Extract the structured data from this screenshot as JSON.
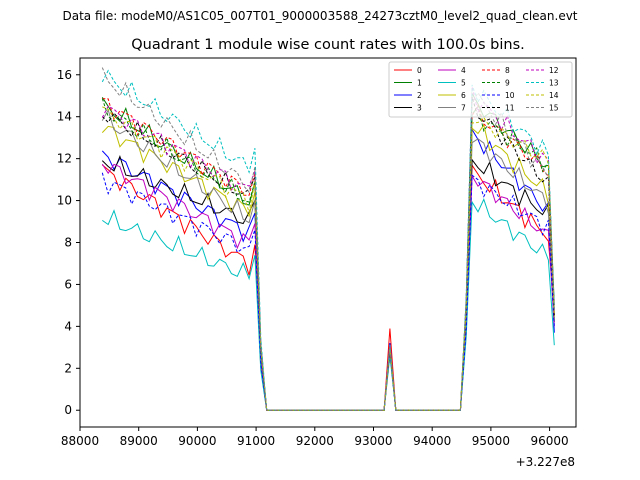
{
  "suptitle": "Data file: modeM0/AS1C05_007T01_9000003588_24273cztM0_level2_quad_clean.evt",
  "chart_data": {
    "type": "line",
    "title": "Quadrant 1 module wise count rates with 100.0s bins.",
    "xlabel": "",
    "ylabel": "",
    "x_offset_label": "+3.227e8",
    "xlim": [
      88000,
      96450
    ],
    "ylim": [
      -0.8,
      16.8
    ],
    "xticks": [
      88000,
      89000,
      90000,
      91000,
      92000,
      93000,
      94000,
      95000,
      96000
    ],
    "xtick_labels": [
      "88000",
      "89000",
      "90000",
      "91000",
      "92000",
      "93000",
      "94000",
      "95000",
      "96000"
    ],
    "yticks": [
      0,
      2,
      4,
      6,
      8,
      10,
      12,
      14,
      16
    ],
    "ytick_labels": [
      "0",
      "2",
      "4",
      "6",
      "8",
      "10",
      "12",
      "14",
      "16"
    ],
    "grid": false,
    "legend_position": "top-right",
    "x": [
      88380,
      88480,
      88580,
      88680,
      88780,
      88880,
      88980,
      89080,
      89180,
      89280,
      89380,
      89480,
      89580,
      89680,
      89780,
      89880,
      89980,
      90080,
      90180,
      90280,
      90380,
      90480,
      90580,
      90680,
      90780,
      90880,
      90980,
      91080,
      91180,
      91280,
      91380,
      91480,
      91580,
      91680,
      91780,
      91880,
      91980,
      92080,
      92180,
      92280,
      92380,
      92480,
      92580,
      92680,
      92780,
      92880,
      92980,
      93080,
      93180,
      93280,
      93380,
      93480,
      93580,
      93680,
      93780,
      93880,
      93980,
      94080,
      94180,
      94280,
      94380,
      94480,
      94580,
      94680,
      94780,
      94880,
      94980,
      95080,
      95180,
      95280,
      95380,
      95480,
      95580,
      95680,
      95780,
      95880,
      95980,
      96080
    ],
    "series": [
      {
        "name": "0",
        "color": "#ff0000",
        "dash": false,
        "start": 11.5,
        "end": 6.8,
        "spike": 3.9,
        "resume": 11.4,
        "finish": 8.3,
        "last": 4.8
      },
      {
        "name": "1",
        "color": "#008000",
        "dash": false,
        "start": 14.6,
        "end": 9.8,
        "spike": 2.9,
        "resume": 14.8,
        "finish": 11.6,
        "last": 5.0
      },
      {
        "name": "2",
        "color": "#0000ff",
        "dash": false,
        "start": 12.2,
        "end": 8.3,
        "spike": 3.2,
        "resume": 13.2,
        "finish": 9.5,
        "last": 3.7
      },
      {
        "name": "3",
        "color": "#000000",
        "dash": false,
        "start": 11.9,
        "end": 8.9,
        "spike": 3.0,
        "resume": 11.9,
        "finish": 9.3,
        "last": 4.2
      },
      {
        "name": "4",
        "color": "#bf00bf",
        "dash": false,
        "start": 11.8,
        "end": 7.8,
        "spike": 3.1,
        "resume": 11.2,
        "finish": 8.3,
        "last": 4.0
      },
      {
        "name": "5",
        "color": "#00bfbf",
        "dash": false,
        "start": 9.2,
        "end": 6.3,
        "spike": 2.6,
        "resume": 10.0,
        "finish": 7.3,
        "last": 3.1
      },
      {
        "name": "6",
        "color": "#bfbf00",
        "dash": false,
        "start": 13.5,
        "end": 9.3,
        "spike": 3.0,
        "resume": 13.6,
        "finish": 10.3,
        "last": 4.3
      },
      {
        "name": "7",
        "color": "#808080",
        "dash": false,
        "start": 14.0,
        "end": 8.9,
        "spike": 3.0,
        "resume": 13.0,
        "finish": 9.9,
        "last": 4.4
      },
      {
        "name": "8",
        "color": "#ff0000",
        "dash": true,
        "start": 14.7,
        "end": 10.2,
        "spike": 3.0,
        "resume": 14.3,
        "finish": 11.4,
        "last": 4.5
      },
      {
        "name": "9",
        "color": "#008000",
        "dash": true,
        "start": 14.4,
        "end": 9.8,
        "spike": 2.9,
        "resume": 14.2,
        "finish": 11.7,
        "last": 4.6
      },
      {
        "name": "10",
        "color": "#0000ff",
        "dash": true,
        "start": 11.0,
        "end": 7.5,
        "spike": 2.8,
        "resume": 11.0,
        "finish": 8.7,
        "last": 4.0
      },
      {
        "name": "11",
        "color": "#000000",
        "dash": true,
        "start": 14.2,
        "end": 10.0,
        "spike": 2.9,
        "resume": 14.5,
        "finish": 10.8,
        "last": 4.4
      },
      {
        "name": "12",
        "color": "#bf00bf",
        "dash": true,
        "start": 14.5,
        "end": 10.3,
        "spike": 3.0,
        "resume": 15.0,
        "finish": 11.8,
        "last": 4.6
      },
      {
        "name": "13",
        "color": "#00bfbf",
        "dash": true,
        "start": 16.0,
        "end": 11.4,
        "spike": 3.1,
        "resume": 15.4,
        "finish": 12.2,
        "last": 4.8
      },
      {
        "name": "14",
        "color": "#bfbf00",
        "dash": true,
        "start": 14.3,
        "end": 9.8,
        "spike": 3.0,
        "resume": 14.0,
        "finish": 11.9,
        "last": 4.5
      },
      {
        "name": "15",
        "color": "#808080",
        "dash": true,
        "start": 15.9,
        "end": 10.5,
        "spike": 3.0,
        "resume": 15.2,
        "finish": 11.2,
        "last": 4.7
      }
    ]
  }
}
